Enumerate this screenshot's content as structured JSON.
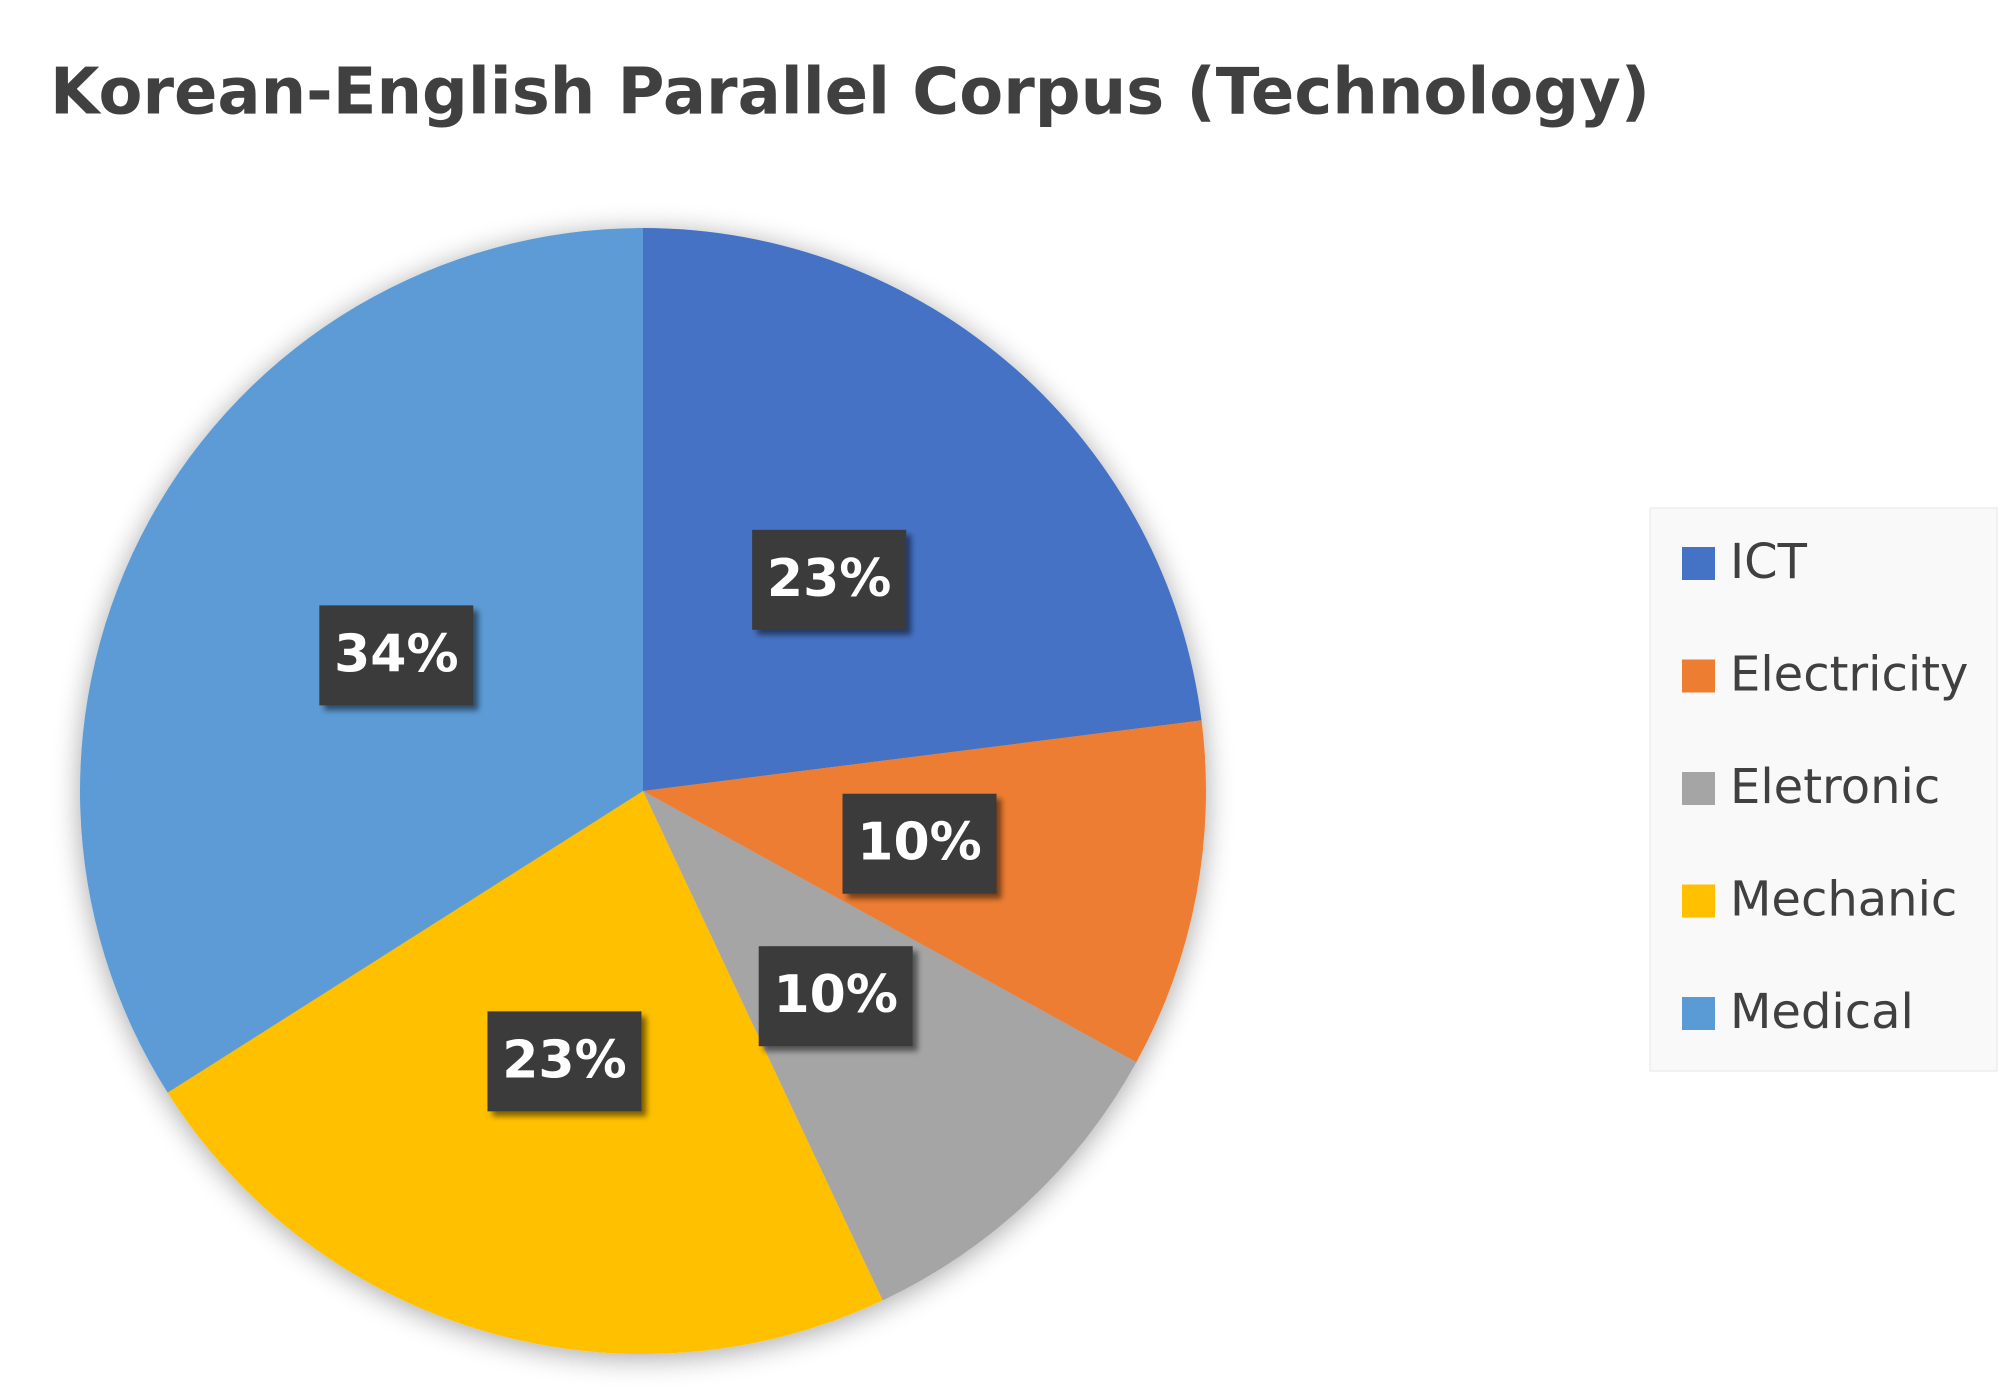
{
  "chart_data": {
    "type": "pie",
    "title": "Korean-English Parallel Corpus (Technology)",
    "categories": [
      "ICT",
      "Electricity",
      "Eletronic",
      "Mechanic",
      "Medical"
    ],
    "values": [
      23,
      10,
      10,
      23,
      34
    ],
    "value_labels": [
      "23%",
      "10%",
      "10%",
      "23%",
      "34%"
    ],
    "colors": [
      "#4472c4",
      "#ed7d31",
      "#a5a5a5",
      "#ffc000",
      "#5b9bd5"
    ],
    "legend": "right"
  }
}
